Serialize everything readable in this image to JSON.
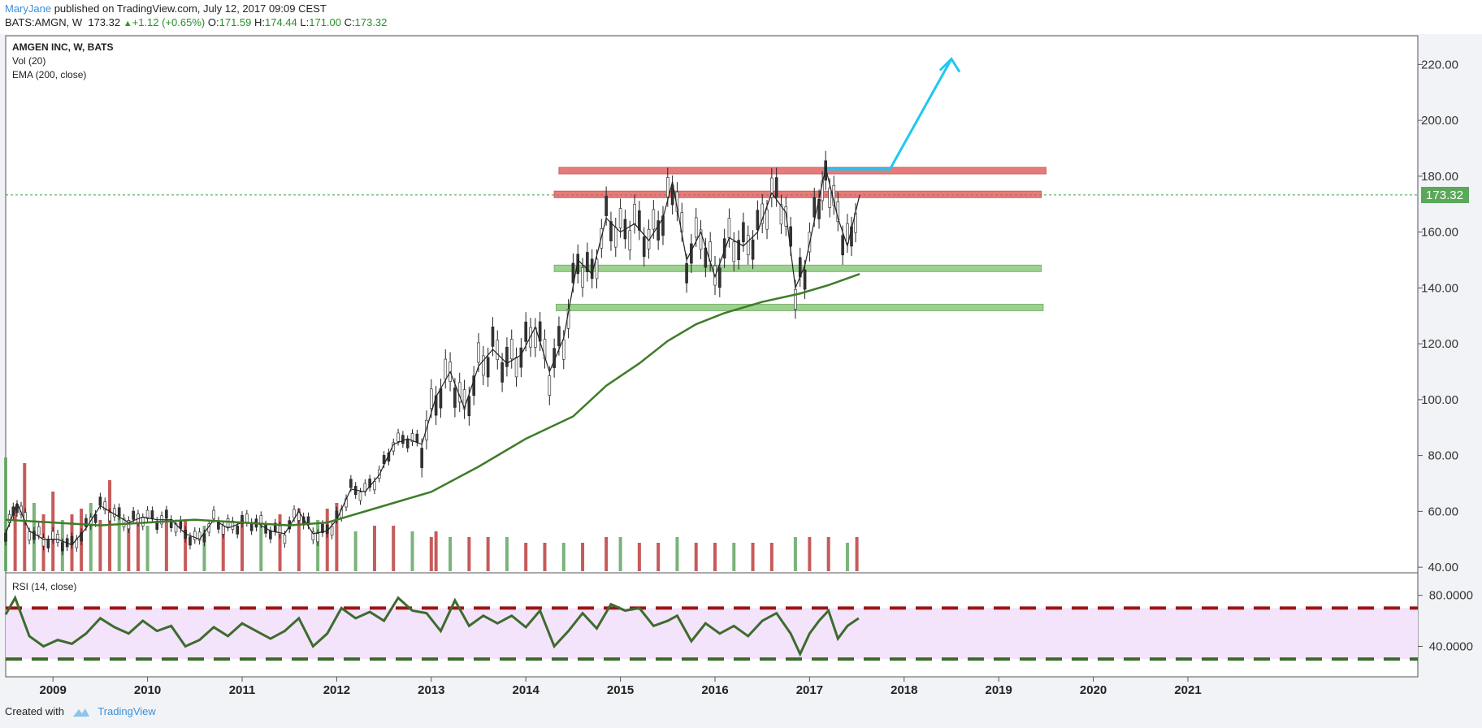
{
  "header": {
    "author": "MaryJane",
    "published": " published on TradingView.com, July 12, 2017 09:09 CEST",
    "symbol_line": "BATS:AMGN, W",
    "last": "173.32",
    "change": "+1.12 (+0.65%)",
    "open_label": "O:",
    "open": "171.59",
    "high_label": "H:",
    "high": "174.44",
    "low_label": "L:",
    "low": "171.00",
    "close_label": "C:",
    "close": "173.32"
  },
  "legend": {
    "title": "AMGEN INC, W, BATS",
    "vol": "Vol (20)",
    "ema": "EMA (200, close)",
    "rsi": "RSI (14, close)"
  },
  "price_badge": "173.32",
  "footer": {
    "created_with": "Created with",
    "brand": "TradingView"
  },
  "colors": {
    "up": "#5aa05a",
    "down": "#b83232",
    "ema": "#3e7c2a",
    "rsi": "#3e6b2e",
    "resistance": "#e05050",
    "support": "#7cc26a",
    "arrow": "#1ec8f0",
    "last_line": "#3aa83a",
    "rsi_band": "#f4e4fb"
  },
  "chart_data": [
    {
      "type": "line",
      "title": "AMGEN INC, W, BATS",
      "x_ticks": [
        "2009",
        "2010",
        "2011",
        "2012",
        "2013",
        "2014",
        "2015",
        "2016",
        "2017",
        "2018",
        "2019",
        "2020",
        "2021"
      ],
      "y_ticks": [
        "40.00",
        "60.00",
        "80.00",
        "100.00",
        "120.00",
        "140.00",
        "160.00",
        "180.00",
        "200.00",
        "220.00"
      ],
      "ylim": [
        38,
        230
      ],
      "xlim": [
        2008.5,
        2021.45
      ],
      "last_price": 173.32,
      "series": [
        {
          "name": "",
          "x": [
            2008.5,
            2008.62,
            2008.75,
            2008.9,
            2009.05,
            2009.2,
            2009.35,
            2009.5,
            2009.65,
            2009.8,
            2009.95,
            2010.1,
            2010.25,
            2010.4,
            2010.55,
            2010.7,
            2010.85,
            2011.0,
            2011.15,
            2011.3,
            2011.45,
            2011.6,
            2011.75,
            2011.9,
            2012.0,
            2012.15,
            2012.3,
            2012.45,
            2012.6,
            2012.75,
            2012.9,
            2013.05,
            2013.2,
            2013.35,
            2013.5,
            2013.65,
            2013.8,
            2013.95,
            2014.1,
            2014.25,
            2014.4,
            2014.55,
            2014.7,
            2014.85,
            2015.0,
            2015.15,
            2015.3,
            2015.45,
            2015.55,
            2015.7,
            2015.85,
            2016.0,
            2016.15,
            2016.3,
            2016.45,
            2016.6,
            2016.75,
            2016.85,
            2016.95,
            2017.1,
            2017.17,
            2017.3,
            2017.4,
            2017.53
          ],
          "values": [
            52,
            63,
            53,
            50,
            50,
            48,
            54,
            62,
            59,
            56,
            58,
            57,
            57,
            52,
            50,
            57,
            54,
            56,
            56,
            53,
            52,
            60,
            52,
            53,
            57,
            68,
            67,
            73,
            84,
            86,
            84,
            101,
            110,
            97,
            112,
            118,
            113,
            116,
            126,
            110,
            122,
            150,
            145,
            165,
            160,
            163,
            157,
            165,
            178,
            150,
            160,
            144,
            158,
            155,
            160,
            174,
            167,
            140,
            148,
            172,
            183,
            165,
            155,
            173.32
          ]
        },
        {
          "name": "",
          "x": [
            2008.5,
            2009.0,
            2009.5,
            2010.0,
            2010.5,
            2011.0,
            2011.5,
            2011.9,
            2012.3,
            2012.7,
            2013.0,
            2013.5,
            2014.0,
            2014.5,
            2014.85,
            2015.2,
            2015.5,
            2015.8,
            2016.1,
            2016.5,
            2016.9,
            2017.2,
            2017.53
          ],
          "values": [
            57,
            56,
            55,
            56,
            57,
            56,
            55,
            56,
            60,
            64,
            67,
            76,
            86,
            94,
            105,
            113,
            121,
            127,
            131,
            135,
            138,
            141,
            145
          ]
        }
      ],
      "annotations": [
        {
          "label": "resistance",
          "from": 2014.35,
          "to": 2019.5,
          "value": 182
        },
        {
          "label": "resistance",
          "from": 2014.3,
          "to": 2019.45,
          "value": 173.5
        },
        {
          "label": "support",
          "from": 2014.3,
          "to": 2019.45,
          "value": 147
        },
        {
          "label": "support",
          "from": 2014.32,
          "to": 2019.47,
          "value": 133
        },
        {
          "label": "target-path",
          "points": [
            [
              2017.15,
              182.5
            ],
            [
              2017.85,
              182.5
            ],
            [
              2018.5,
              222
            ]
          ]
        }
      ]
    },
    {
      "type": "bar",
      "title": "Vol (20)",
      "x": [
        2008.5,
        2008.6,
        2008.7,
        2008.8,
        2008.9,
        2009.0,
        2009.1,
        2009.2,
        2009.3,
        2009.4,
        2009.5,
        2009.6,
        2009.7,
        2009.8,
        2009.9,
        2010.0,
        2010.2,
        2010.4,
        2010.6,
        2010.8,
        2011.0,
        2011.2,
        2011.4,
        2011.6,
        2011.8,
        2011.9,
        2012.0,
        2012.2,
        2012.4,
        2012.6,
        2012.8,
        2013.0,
        2013.05,
        2013.2,
        2013.4,
        2013.6,
        2013.8,
        2014.0,
        2014.2,
        2014.4,
        2014.6,
        2014.85,
        2015.0,
        2015.2,
        2015.4,
        2015.6,
        2015.8,
        2016.0,
        2016.2,
        2016.4,
        2016.6,
        2016.85,
        2017.0,
        2017.2,
        2017.4,
        2017.5
      ],
      "values": [
        1.0,
        0.55,
        0.95,
        0.6,
        0.5,
        0.7,
        0.45,
        0.5,
        0.55,
        0.6,
        0.45,
        0.8,
        0.5,
        0.45,
        0.5,
        0.4,
        0.45,
        0.45,
        0.4,
        0.4,
        0.45,
        0.4,
        0.5,
        0.55,
        0.45,
        0.55,
        0.6,
        0.35,
        0.4,
        0.4,
        0.35,
        0.3,
        0.35,
        0.3,
        0.3,
        0.3,
        0.3,
        0.25,
        0.25,
        0.25,
        0.25,
        0.3,
        0.3,
        0.25,
        0.25,
        0.3,
        0.25,
        0.25,
        0.25,
        0.25,
        0.25,
        0.3,
        0.3,
        0.3,
        0.25,
        0.3
      ]
    },
    {
      "type": "line",
      "title": "RSI (14, close)",
      "y_ticks": [
        "40.0000",
        "80.0000"
      ],
      "ylim": [
        18,
        97
      ],
      "upper_band": 70,
      "lower_band": 30,
      "series": [
        {
          "name": "",
          "x": [
            2008.5,
            2008.6,
            2008.75,
            2008.9,
            2009.05,
            2009.2,
            2009.35,
            2009.5,
            2009.65,
            2009.8,
            2009.95,
            2010.1,
            2010.25,
            2010.4,
            2010.55,
            2010.7,
            2010.85,
            2011.0,
            2011.15,
            2011.3,
            2011.45,
            2011.6,
            2011.75,
            2011.9,
            2012.05,
            2012.2,
            2012.35,
            2012.5,
            2012.65,
            2012.8,
            2012.95,
            2013.1,
            2013.25,
            2013.4,
            2013.55,
            2013.7,
            2013.85,
            2014.0,
            2014.15,
            2014.3,
            2014.45,
            2014.6,
            2014.75,
            2014.9,
            2015.05,
            2015.2,
            2015.35,
            2015.5,
            2015.6,
            2015.75,
            2015.9,
            2016.05,
            2016.2,
            2016.35,
            2016.5,
            2016.65,
            2016.8,
            2016.9,
            2017.0,
            2017.1,
            2017.2,
            2017.3,
            2017.4,
            2017.52
          ],
          "values": [
            65,
            78,
            48,
            40,
            45,
            42,
            50,
            62,
            55,
            50,
            60,
            52,
            56,
            40,
            45,
            55,
            48,
            58,
            52,
            46,
            52,
            62,
            40,
            50,
            70,
            62,
            67,
            60,
            78,
            68,
            66,
            52,
            76,
            56,
            64,
            58,
            64,
            55,
            68,
            40,
            52,
            66,
            54,
            73,
            68,
            70,
            56,
            60,
            64,
            44,
            58,
            50,
            56,
            48,
            60,
            66,
            50,
            34,
            50,
            60,
            68,
            46,
            56,
            62
          ]
        }
      ]
    }
  ]
}
